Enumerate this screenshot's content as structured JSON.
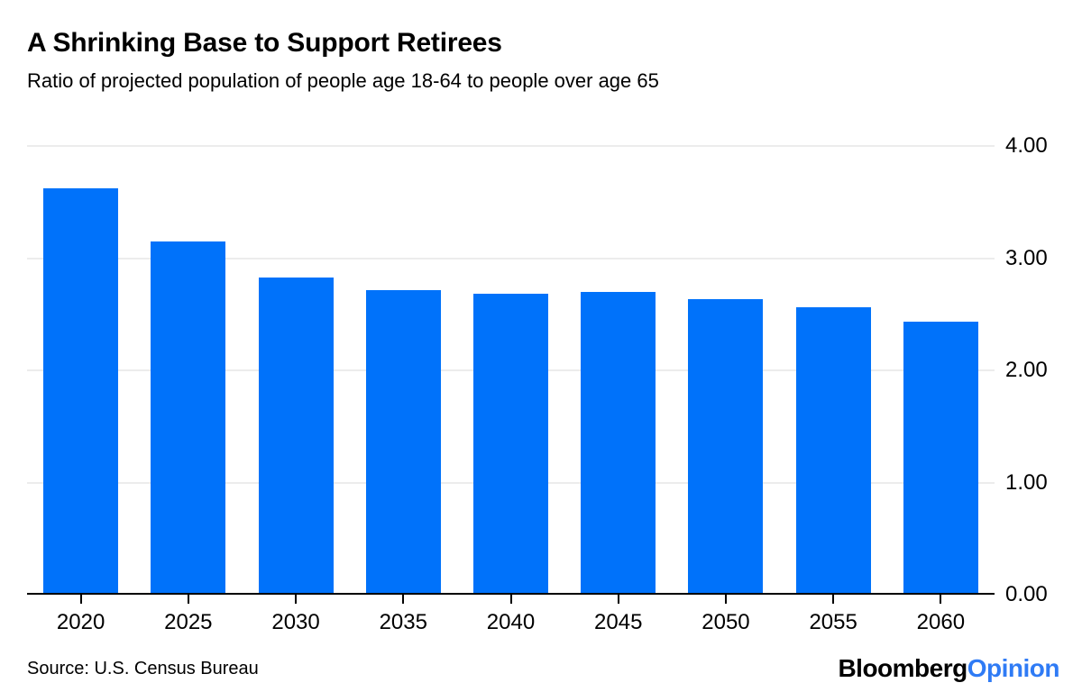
{
  "header": {
    "title": "A Shrinking Base to Support Retirees",
    "subtitle": "Ratio of projected population of people age 18-64 to people over age 65"
  },
  "chart_data": {
    "type": "bar",
    "title": "A Shrinking Base to Support Retirees",
    "subtitle": "Ratio of projected population of people age 18-64 to people over age 65",
    "categories": [
      "2020",
      "2025",
      "2030",
      "2035",
      "2040",
      "2045",
      "2050",
      "2055",
      "2060"
    ],
    "values": [
      3.61,
      3.13,
      2.81,
      2.7,
      2.67,
      2.68,
      2.62,
      2.55,
      2.42
    ],
    "xlabel": "",
    "ylabel": "",
    "ylim": [
      0,
      4
    ],
    "yticks": [
      0,
      1,
      2,
      3,
      4
    ],
    "ytick_labels": [
      "0.00",
      "1.00",
      "2.00",
      "3.00",
      "4.00"
    ],
    "grid": "horizontal-light-gray, y-axis labels on right side",
    "legend": "none",
    "bar_color": "#0072fa"
  },
  "footer": {
    "source": "Source: U.S. Census Bureau",
    "logo": {
      "brand": "Bloomberg",
      "division": "Opinion"
    }
  },
  "colors": {
    "bar": "#0072fa",
    "logo_brand": "#000000",
    "logo_division": "#2f7bf5",
    "gridline": "#ececec",
    "axis": "#000000",
    "text": "#000000",
    "background": "#ffffff"
  }
}
